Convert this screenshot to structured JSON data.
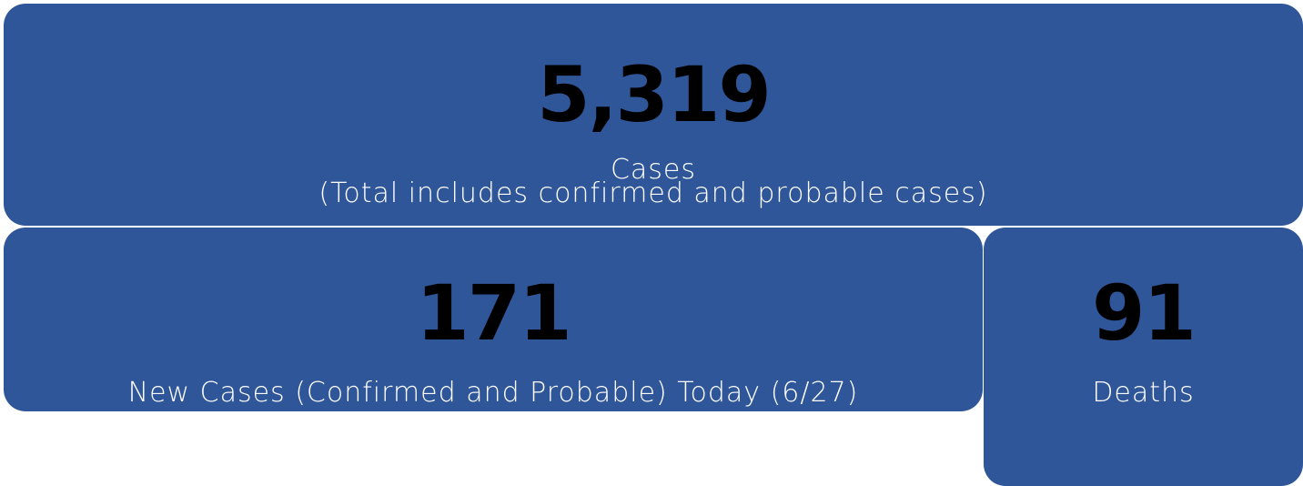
{
  "cards": [
    {
      "value": "5,319",
      "label": "Cases",
      "note": "(Total includes confirmed and probable cases)"
    },
    {
      "value": "171",
      "label": "New Cases (Confirmed and Probable) Today (6/27)"
    },
    {
      "value": "91",
      "label": "Deaths"
    }
  ]
}
